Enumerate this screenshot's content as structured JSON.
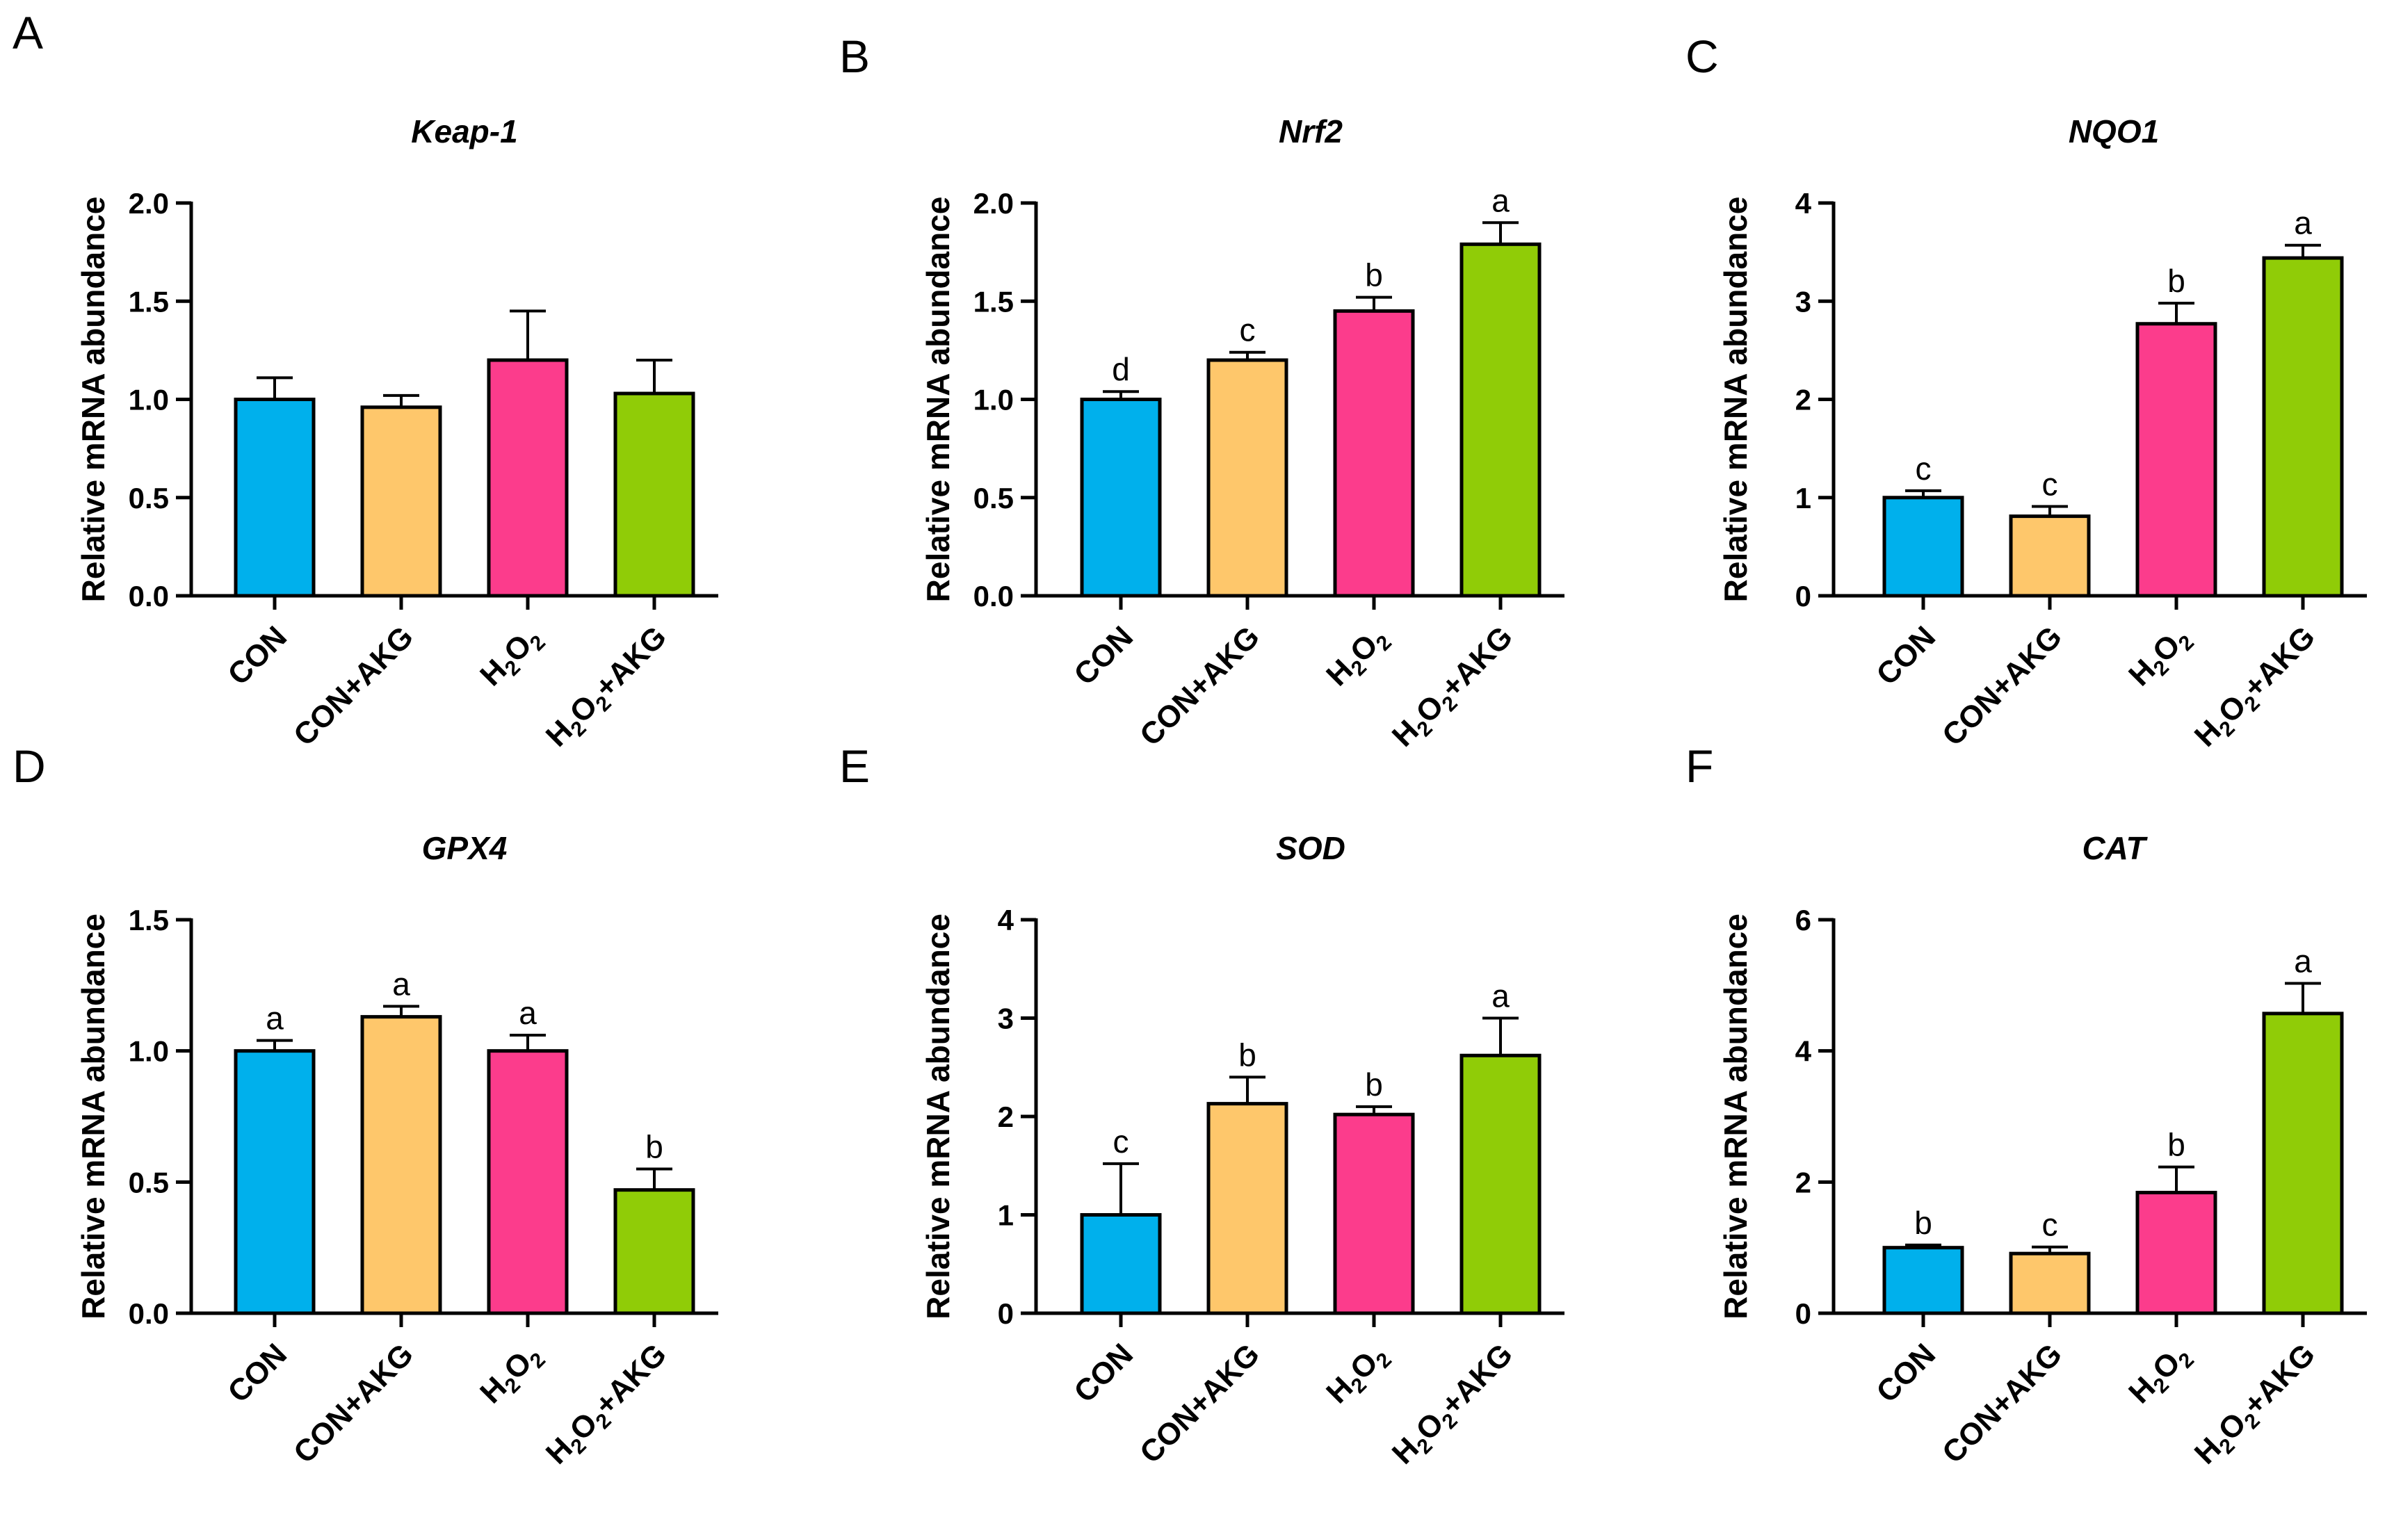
{
  "figure": {
    "colors": {
      "CON": "#00b0ec",
      "CON+AKG": "#fec76b",
      "H2O2": "#fc3c8c",
      "H2O2+AKG": "#90cc07",
      "axis": "#000000"
    }
  },
  "chart_data": [
    {
      "panel": "A",
      "type": "bar",
      "title": "Keap-1",
      "ylabel": "Relative  mRNA abundance",
      "xlabel": "",
      "ylim": [
        0,
        2.0
      ],
      "yticks": [
        "0.0",
        "0.5",
        "1.0",
        "1.5",
        "2.0"
      ],
      "ytick_values": [
        0,
        0.5,
        1.0,
        1.5,
        2.0
      ],
      "categories": [
        "CON",
        "CON+AKG",
        "H2O2",
        "H2O2+AKG"
      ],
      "values": [
        1.0,
        0.96,
        1.2,
        1.03
      ],
      "errors": [
        0.11,
        0.06,
        0.25,
        0.17
      ],
      "significance": [
        "",
        "",
        "",
        ""
      ]
    },
    {
      "panel": "B",
      "type": "bar",
      "title": "Nrf2",
      "ylabel": "Relative  mRNA abundance",
      "xlabel": "",
      "ylim": [
        0,
        2.0
      ],
      "yticks": [
        "0.0",
        "0.5",
        "1.0",
        "1.5",
        "2.0"
      ],
      "ytick_values": [
        0,
        0.5,
        1.0,
        1.5,
        2.0
      ],
      "categories": [
        "CON",
        "CON+AKG",
        "H2O2",
        "H2O2+AKG"
      ],
      "values": [
        1.0,
        1.2,
        1.45,
        1.79
      ],
      "errors": [
        0.04,
        0.04,
        0.07,
        0.11
      ],
      "significance": [
        "d",
        "c",
        "b",
        "a"
      ]
    },
    {
      "panel": "C",
      "type": "bar",
      "title": "NQO1",
      "ylabel": "Relative  mRNA abundance",
      "xlabel": "",
      "ylim": [
        0,
        4
      ],
      "yticks": [
        "0",
        "1",
        "2",
        "3",
        "4"
      ],
      "ytick_values": [
        0,
        1,
        2,
        3,
        4
      ],
      "categories": [
        "CON",
        "CON+AKG",
        "H2O2",
        "H2O2+AKG"
      ],
      "values": [
        1.0,
        0.81,
        2.77,
        3.44
      ],
      "errors": [
        0.07,
        0.1,
        0.21,
        0.13
      ],
      "significance": [
        "c",
        "c",
        "b",
        "a"
      ]
    },
    {
      "panel": "D",
      "type": "bar",
      "title": "GPX4",
      "ylabel": "Relative  mRNA abundance",
      "xlabel": "",
      "ylim": [
        0,
        1.5
      ],
      "yticks": [
        "0.0",
        "0.5",
        "1.0",
        "1.5"
      ],
      "ytick_values": [
        0,
        0.5,
        1.0,
        1.5
      ],
      "categories": [
        "CON",
        "CON+AKG",
        "H2O2",
        "H2O2+AKG"
      ],
      "values": [
        1.0,
        1.13,
        1.0,
        0.47
      ],
      "errors": [
        0.04,
        0.04,
        0.06,
        0.08
      ],
      "significance": [
        "a",
        "a",
        "a",
        "b"
      ]
    },
    {
      "panel": "E",
      "type": "bar",
      "title": "SOD",
      "ylabel": "Relative  mRNA abundance",
      "xlabel": "",
      "ylim": [
        0,
        4
      ],
      "yticks": [
        "0",
        "1",
        "2",
        "3",
        "4"
      ],
      "ytick_values": [
        0,
        1,
        2,
        3,
        4
      ],
      "categories": [
        "CON",
        "CON+AKG",
        "H2O2",
        "H2O2+AKG"
      ],
      "values": [
        1.0,
        2.13,
        2.02,
        2.62
      ],
      "errors": [
        0.52,
        0.27,
        0.08,
        0.38
      ],
      "significance": [
        "c",
        "b",
        "b",
        "a"
      ]
    },
    {
      "panel": "F",
      "type": "bar",
      "title": "CAT",
      "ylabel": "Relative  mRNA abundance",
      "xlabel": "",
      "ylim": [
        0,
        6
      ],
      "yticks": [
        "0",
        "2",
        "4",
        "6"
      ],
      "ytick_values": [
        0,
        2,
        4,
        6
      ],
      "categories": [
        "CON",
        "CON+AKG",
        "H2O2",
        "H2O2+AKG"
      ],
      "values": [
        1.0,
        0.91,
        1.84,
        4.57
      ],
      "errors": [
        0.04,
        0.1,
        0.39,
        0.46
      ],
      "significance": [
        "b",
        "c",
        "b",
        "a"
      ]
    }
  ]
}
